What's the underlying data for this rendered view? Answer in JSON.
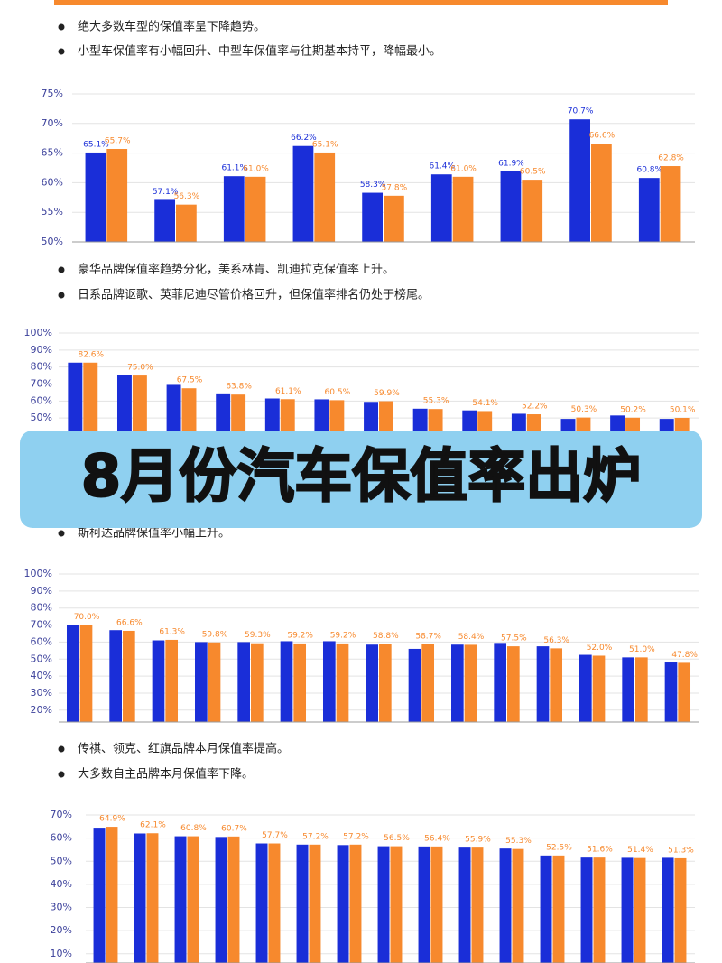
{
  "banner": "8月份汽车保值率出炉",
  "notes": [
    [
      "绝大多数车型的保值率呈下降趋势。",
      "小型车保值率有小幅回升、中型车保值率与往期基本持平，降幅最小。"
    ],
    [
      "豪华品牌保值率趋势分化，美系林肯、凯迪拉克保值率上升。",
      "日系品牌讴歌、英菲尼迪尽管价格回升，但保值率排名仍处于榜尾。"
    ],
    [
      "斯柯达品牌保值率小幅上升。"
    ],
    [
      "传祺、领克、红旗品牌本月保值率提高。",
      "大多数自主品牌本月保值率下降。"
    ]
  ],
  "chart_data": [
    {
      "type": "bar",
      "categories": [
        null,
        null,
        null,
        null,
        null,
        null,
        null,
        null,
        null
      ],
      "series": [
        {
          "color": "#1a2ed8",
          "values": [
            65.1,
            57.1,
            61.1,
            66.2,
            58.3,
            61.4,
            61.9,
            70.7,
            60.8
          ],
          "value_labels": [
            "65.1%",
            "57.1%",
            "61.1%",
            "66.2%",
            "58.3%",
            "61.4%",
            "61.9%",
            "70.7%",
            "60.8%"
          ]
        },
        {
          "color": "#f7892d",
          "values": [
            65.7,
            56.3,
            61.0,
            65.1,
            57.8,
            61.0,
            60.5,
            66.6,
            62.8
          ],
          "value_labels": [
            "65.7%",
            "56.3%",
            "61.0%",
            "65.1%",
            "57.8%",
            "61.0%",
            "60.5%",
            "66.6%",
            "62.8%"
          ]
        }
      ],
      "ylim": [
        50,
        75
      ],
      "yticks": [
        {
          "value": 50,
          "label": "50%"
        },
        {
          "value": 55,
          "label": "55%"
        },
        {
          "value": 60,
          "label": "60%"
        },
        {
          "value": 65,
          "label": "65%"
        },
        {
          "value": 70,
          "label": "70%"
        },
        {
          "value": 75,
          "label": "75%"
        }
      ],
      "grid": true
    },
    {
      "type": "bar",
      "categories": [
        null,
        null,
        null,
        null,
        null,
        null,
        null,
        null,
        null,
        null,
        null,
        null,
        null
      ],
      "series": [
        {
          "color": "#1a2ed8",
          "values": [
            82.6,
            75.5,
            69.5,
            64.5,
            61.5,
            61.0,
            59.5,
            55.5,
            54.5,
            52.5,
            49.5,
            51.5,
            49.5
          ]
        },
        {
          "color": "#f7892d",
          "values": [
            82.6,
            75.0,
            67.5,
            63.8,
            61.1,
            60.5,
            59.9,
            55.3,
            54.1,
            52.2,
            50.3,
            50.2,
            50.1
          ],
          "value_labels": [
            "82.6%",
            "75.0%",
            "67.5%",
            "63.8%",
            "61.1%",
            "60.5%",
            "59.9%",
            "55.3%",
            "54.1%",
            "52.2%",
            "50.3%",
            "50.2%",
            "50.1%"
          ]
        }
      ],
      "ylim": [
        40,
        100
      ],
      "yticks": [
        {
          "value": 50,
          "label": "50%"
        },
        {
          "value": 60,
          "label": "60%"
        },
        {
          "value": 70,
          "label": "70%"
        },
        {
          "value": 80,
          "label": "80%"
        },
        {
          "value": 90,
          "label": "90%"
        },
        {
          "value": 100,
          "label": "100%"
        }
      ],
      "grid": true
    },
    {
      "type": "bar",
      "categories": [
        null,
        null,
        null,
        null,
        null,
        null,
        null,
        null,
        null,
        null,
        null,
        null,
        null,
        null,
        null
      ],
      "series": [
        {
          "color": "#1a2ed8",
          "values": [
            70.0,
            67.0,
            61.0,
            60.0,
            60.0,
            60.5,
            60.5,
            58.5,
            56.0,
            58.5,
            59.5,
            57.5,
            52.5,
            51.0,
            48.0
          ]
        },
        {
          "color": "#f7892d",
          "values": [
            70.0,
            66.6,
            61.3,
            59.8,
            59.3,
            59.2,
            59.2,
            58.8,
            58.7,
            58.4,
            57.5,
            56.3,
            52.0,
            51.0,
            47.8
          ],
          "value_labels": [
            "70.0%",
            "66.6%",
            "61.3%",
            "59.8%",
            "59.3%",
            "59.2%",
            "59.2%",
            "58.8%",
            "58.7%",
            "58.4%",
            "57.5%",
            "56.3%",
            "52.0%",
            "51.0%",
            "47.8%"
          ]
        }
      ],
      "ylim": [
        13,
        100
      ],
      "yticks": [
        {
          "value": 20,
          "label": "20%"
        },
        {
          "value": 30,
          "label": "30%"
        },
        {
          "value": 40,
          "label": "40%"
        },
        {
          "value": 50,
          "label": "50%"
        },
        {
          "value": 60,
          "label": "60%"
        },
        {
          "value": 70,
          "label": "70%"
        },
        {
          "value": 80,
          "label": "80%"
        },
        {
          "value": 90,
          "label": "90%"
        },
        {
          "value": 100,
          "label": "100%"
        }
      ],
      "grid": true
    },
    {
      "type": "bar",
      "categories": [
        null,
        null,
        null,
        null,
        null,
        null,
        null,
        null,
        null,
        null,
        null,
        null,
        null,
        null,
        null
      ],
      "series": [
        {
          "color": "#1a2ed8",
          "values": [
            64.5,
            62.0,
            60.8,
            60.5,
            57.7,
            57.2,
            57.0,
            56.5,
            56.4,
            55.9,
            55.5,
            52.5,
            51.6,
            51.5,
            51.5
          ]
        },
        {
          "color": "#f7892d",
          "values": [
            64.9,
            62.1,
            60.8,
            60.7,
            57.7,
            57.2,
            57.2,
            56.5,
            56.4,
            55.9,
            55.3,
            52.5,
            51.6,
            51.4,
            51.3
          ],
          "value_labels": [
            "64.9%",
            "62.1%",
            "60.8%",
            "60.7%",
            "57.7%",
            "57.2%",
            "57.2%",
            "56.5%",
            "56.4%",
            "55.9%",
            "55.3%",
            "52.5%",
            "51.6%",
            "51.4%",
            "51.3%"
          ]
        }
      ],
      "ylim": [
        6,
        70
      ],
      "yticks": [
        {
          "value": 10,
          "label": "10%"
        },
        {
          "value": 20,
          "label": "20%"
        },
        {
          "value": 30,
          "label": "30%"
        },
        {
          "value": 40,
          "label": "40%"
        },
        {
          "value": 50,
          "label": "50%"
        },
        {
          "value": 60,
          "label": "60%"
        },
        {
          "value": 70,
          "label": "70%"
        }
      ],
      "grid": true
    }
  ]
}
